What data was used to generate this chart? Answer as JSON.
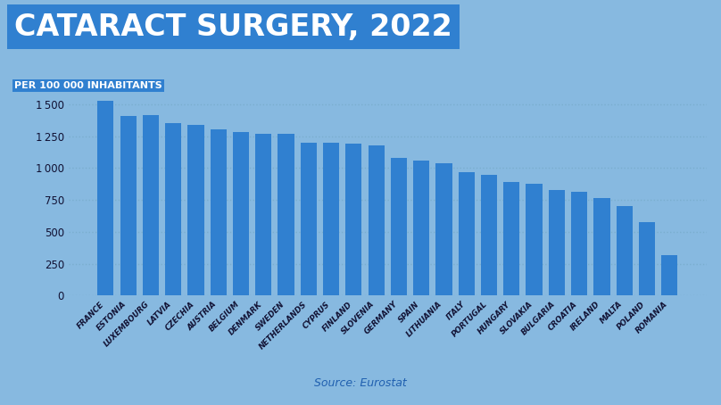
{
  "title": "CATARACT SURGERY, 2022",
  "subtitle": "PER 100 000 INHABITANTS",
  "source": "Source: Eurostat",
  "background_color": "#87b9e0",
  "bar_color": "#3080d0",
  "categories": [
    "FRANCE",
    "ESTONIA",
    "LUXEMBOURG",
    "LATVIA",
    "CZECHIA",
    "AUSTRIA",
    "BELGIUM",
    "DENMARK",
    "SWEDEN",
    "NETHERLANDS",
    "CYPRUS",
    "FINLAND",
    "SLOVENIA",
    "GERMANY",
    "SPAIN",
    "LITHUANIA",
    "ITALY",
    "PORTUGAL",
    "HUNGARY",
    "SLOVAKIA",
    "BULGARIA",
    "CROATIA",
    "IRELAND",
    "MALTA",
    "POLAND",
    "ROMANIA"
  ],
  "values": [
    1530,
    1410,
    1415,
    1350,
    1335,
    1305,
    1280,
    1270,
    1270,
    1200,
    1200,
    1190,
    1175,
    1080,
    1060,
    1040,
    965,
    945,
    890,
    880,
    825,
    815,
    765,
    700,
    575,
    315
  ],
  "ylim": [
    0,
    1650
  ],
  "yticks": [
    0,
    250,
    500,
    750,
    1000,
    1250,
    1500
  ],
  "title_color": "#ffffff",
  "title_bg_color": "#3080d0",
  "title_fontsize": 24,
  "subtitle_fontsize": 8,
  "source_fontsize": 9,
  "source_color": "#2060b0",
  "grid_color": "#7aaece",
  "tick_label_color": "#111133"
}
